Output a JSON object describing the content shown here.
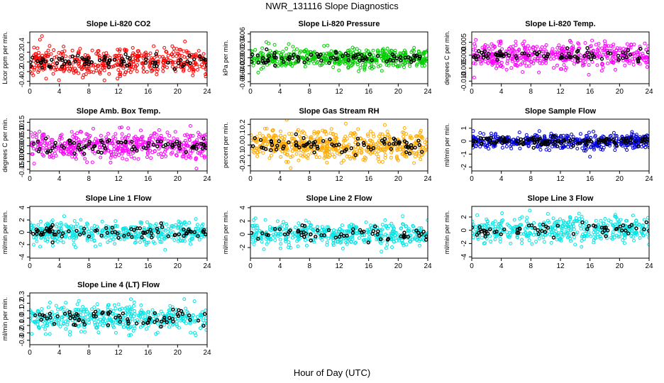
{
  "figure": {
    "title": "NWR_131116  Slope Diagnostics",
    "xlabel": "Hour of Day (UTC)"
  },
  "chart_data": [
    {
      "type": "scatter",
      "title": "Slope Li-820 CO2",
      "ylabel": "Licor ppm per min.",
      "color": "#ff0000",
      "xlim": [
        0,
        24
      ],
      "ylim": [
        -0.45,
        0.62
      ],
      "xticks": [
        0,
        4,
        8,
        12,
        16,
        20,
        24
      ],
      "yticks": [
        -0.4,
        -0.2,
        0.0,
        0.2,
        0.4
      ],
      "ytick_labels": [
        "-0.4",
        "-0.2",
        "0.0",
        "0.2",
        "0.4"
      ],
      "noise_sd": 0.15,
      "series": [
        {
          "name": "",
          "color": "#ff0000",
          "n": 450,
          "seed": 11
        },
        {
          "name": "",
          "color": "#000000",
          "n": 80,
          "seed": 12
        }
      ]
    },
    {
      "type": "scatter",
      "title": "Slope Li-820 Pressure",
      "ylabel": "kPa per min.",
      "color": "#00cc00",
      "xlim": [
        0,
        24
      ],
      "ylim": [
        -0.065,
        0.065
      ],
      "xticks": [
        0,
        4,
        8,
        12,
        16,
        20,
        24
      ],
      "yticks": [
        -0.06,
        -0.04,
        -0.02,
        0.0,
        0.02,
        0.04,
        0.06
      ],
      "ytick_labels": [
        "-0.06",
        "-0.04",
        "-0.02",
        "0.00",
        "0.02",
        "0.04",
        "0.06"
      ],
      "noise_sd": 0.012,
      "series": [
        {
          "name": "",
          "color": "#00cc00",
          "n": 520,
          "seed": 21
        },
        {
          "name": "",
          "color": "#000000",
          "n": 80,
          "seed": 22
        }
      ]
    },
    {
      "type": "scatter",
      "title": "Slope Li-820 Temp.",
      "ylabel": "degrees C per min.",
      "color": "#ff00ff",
      "xlim": [
        0,
        24
      ],
      "ylim": [
        -0.011,
        0.009
      ],
      "xticks": [
        0,
        4,
        8,
        12,
        16,
        20,
        24
      ],
      "yticks": [
        -0.01,
        -0.005,
        0.0,
        0.005
      ],
      "ytick_labels": [
        "-0.010",
        "-0.005",
        "0.000",
        "0.005"
      ],
      "noise_sd": 0.0025,
      "series": [
        {
          "name": "",
          "color": "#ff00ff",
          "n": 480,
          "seed": 31
        },
        {
          "name": "",
          "color": "#000000",
          "n": 80,
          "seed": 32
        }
      ]
    },
    {
      "type": "scatter",
      "title": "Slope Amb. Box Temp.",
      "ylabel": "degrees C per min.",
      "color": "#ff00ff",
      "xlim": [
        0,
        24
      ],
      "ylim": [
        -0.16,
        0.17
      ],
      "xticks": [
        0,
        4,
        8,
        12,
        16,
        20,
        24
      ],
      "yticks": [
        -0.15,
        -0.1,
        -0.05,
        0.0,
        0.05,
        0.1,
        0.15
      ],
      "ytick_labels": [
        "-0.15",
        "-0.10",
        "-0.05",
        "0.00",
        "0.05",
        "0.10",
        "0.15"
      ],
      "noise_sd": 0.045,
      "series": [
        {
          "name": "",
          "color": "#ff00ff",
          "n": 480,
          "seed": 41
        },
        {
          "name": "",
          "color": "#000000",
          "n": 80,
          "seed": 42
        }
      ]
    },
    {
      "type": "scatter",
      "title": "Slope Gas Stream RH",
      "ylabel": "percent per min.",
      "color": "#ffaa00",
      "xlim": [
        0,
        24
      ],
      "ylim": [
        -0.25,
        0.25
      ],
      "xticks": [
        0,
        4,
        8,
        12,
        16,
        20,
        24
      ],
      "yticks": [
        -0.2,
        -0.1,
        0.0,
        0.1,
        0.2
      ],
      "ytick_labels": [
        "-0.2",
        "-0.1",
        "0.0",
        "0.1",
        "0.2"
      ],
      "noise_sd": 0.07,
      "series": [
        {
          "name": "",
          "color": "#ffaa00",
          "n": 560,
          "seed": 51
        },
        {
          "name": "",
          "color": "#000000",
          "n": 80,
          "seed": 52
        }
      ]
    },
    {
      "type": "scatter",
      "title": "Slope Sample Flow",
      "ylabel": "ml/min per min.",
      "color": "#0000dd",
      "xlim": [
        0,
        24
      ],
      "ylim": [
        -2.3,
        1.7
      ],
      "xticks": [
        0,
        4,
        8,
        12,
        16,
        20,
        24
      ],
      "yticks": [
        -2,
        -1,
        0,
        1
      ],
      "ytick_labels": [
        "-2",
        "-1",
        "0",
        "1"
      ],
      "noise_sd": 0.3,
      "series": [
        {
          "name": "",
          "color": "#0000dd",
          "n": 480,
          "seed": 61
        },
        {
          "name": "",
          "color": "#000000",
          "n": 120,
          "seed": 62
        }
      ]
    },
    {
      "type": "scatter",
      "title": "Slope Line 1 Flow",
      "ylabel": "ml/min per min.",
      "color": "#00e5e5",
      "xlim": [
        0,
        24
      ],
      "ylim": [
        -4.2,
        4.2
      ],
      "xticks": [
        0,
        4,
        8,
        12,
        16,
        20,
        24
      ],
      "yticks": [
        -4,
        -2,
        0,
        2,
        4
      ],
      "ytick_labels": [
        "-4",
        "-2",
        "0",
        "2",
        "4"
      ],
      "noise_sd": 0.9,
      "series": [
        {
          "name": "",
          "color": "#00e5e5",
          "n": 420,
          "seed": 71
        },
        {
          "name": "",
          "color": "#000000",
          "n": 80,
          "seed": 72
        }
      ]
    },
    {
      "type": "scatter",
      "title": "Slope Line 2 Flow",
      "ylabel": "ml/min per min.",
      "color": "#00e5e5",
      "xlim": [
        0,
        24
      ],
      "ylim": [
        -3.6,
        4.2
      ],
      "xticks": [
        0,
        4,
        8,
        12,
        16,
        20,
        24
      ],
      "yticks": [
        -2,
        0,
        2,
        4
      ],
      "ytick_labels": [
        "-2",
        "0",
        "2",
        "4"
      ],
      "noise_sd": 0.9,
      "series": [
        {
          "name": "",
          "color": "#00e5e5",
          "n": 420,
          "seed": 81
        },
        {
          "name": "",
          "color": "#000000",
          "n": 60,
          "seed": 82
        }
      ]
    },
    {
      "type": "scatter",
      "title": "Slope Line 3 Flow",
      "ylabel": "ml/min per min.",
      "color": "#00e5e5",
      "xlim": [
        0,
        24
      ],
      "ylim": [
        -4.2,
        3.6
      ],
      "xticks": [
        0,
        4,
        8,
        12,
        16,
        20,
        24
      ],
      "yticks": [
        -4,
        -2,
        0,
        2
      ],
      "ytick_labels": [
        "-4",
        "-2",
        "0",
        "2"
      ],
      "noise_sd": 1.0,
      "series": [
        {
          "name": "",
          "color": "#00e5e5",
          "n": 420,
          "seed": 91
        },
        {
          "name": "",
          "color": "#000000",
          "n": 60,
          "seed": 92
        }
      ]
    },
    {
      "type": "scatter",
      "title": "Slope Line 4 (LT) Flow",
      "ylabel": "ml/min per min.",
      "color": "#00e5e5",
      "xlim": [
        0,
        24
      ],
      "ylim": [
        -0.36,
        0.34
      ],
      "xticks": [
        0,
        4,
        8,
        12,
        16,
        20,
        24
      ],
      "yticks": [
        -0.3,
        -0.2,
        -0.1,
        0.0,
        0.1,
        0.2,
        0.3
      ],
      "ytick_labels": [
        "-0.3",
        "-0.2",
        "-0.1",
        "0.0",
        "0.1",
        "0.2",
        "0.3"
      ],
      "noise_sd": 0.09,
      "series": [
        {
          "name": "",
          "color": "#00e5e5",
          "n": 420,
          "seed": 101
        },
        {
          "name": "",
          "color": "#000000",
          "n": 70,
          "seed": 102
        }
      ]
    }
  ]
}
